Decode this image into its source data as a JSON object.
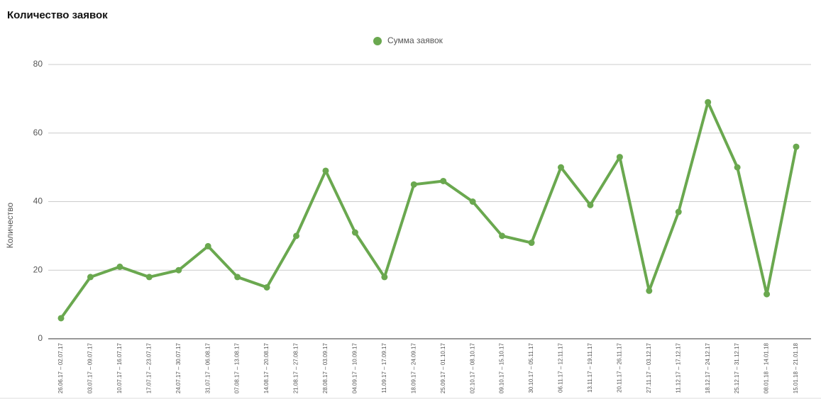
{
  "chart_data": {
    "type": "line",
    "title": "Количество заявок",
    "ylabel": "Количество",
    "categories": [
      "26.06.17 – 02.07.17",
      "03.07.17 – 09.07.17",
      "10.07.17 – 16.07.17",
      "17.07.17 – 23.07.17",
      "24.07.17 – 30.07.17",
      "31.07.17 – 06.08.17",
      "07.08.17 – 13.08.17",
      "14.08.17 – 20.08.17",
      "21.08.17 – 27.08.17",
      "28.08.17 – 03.09.17",
      "04.09.17 – 10.09.17",
      "11.09.17 – 17.09.17",
      "18.09.17 – 24.09.17",
      "25.09.17 – 01.10.17",
      "02.10.17 – 08.10.17",
      "09.10.17 – 15.10.17",
      "30.10.17 – 05.11.17",
      "06.11.17 – 12.11.17",
      "13.11.17 – 19.11.17",
      "20.11.17 – 26.11.17",
      "27.11.17 – 03.12.17",
      "11.12.17 – 17.12.17",
      "18.12.17 – 24.12.17",
      "25.12.17 – 31.12.17",
      "08.01.18 – 14.01.18",
      "15.01.18 – 21.01.18"
    ],
    "series": [
      {
        "name": "Сумма заявок",
        "color": "#6aa84f",
        "values": [
          6,
          18,
          21,
          18,
          20,
          27,
          18,
          15,
          30,
          49,
          31,
          18,
          45,
          46,
          40,
          30,
          28,
          50,
          39,
          53,
          14,
          37,
          69,
          50,
          13,
          56
        ]
      }
    ],
    "ylim": [
      0,
      80
    ],
    "yticks": [
      0,
      20,
      40,
      60,
      80
    ],
    "grid": true
  }
}
